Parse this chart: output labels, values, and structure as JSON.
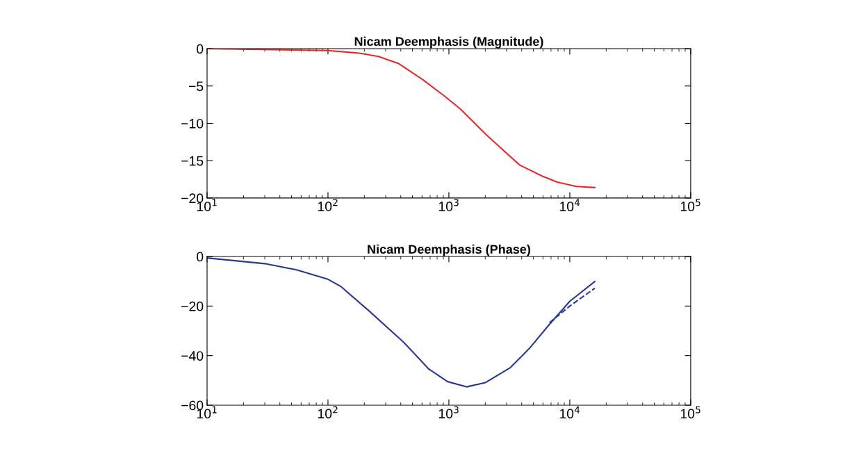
{
  "chart_data": [
    {
      "type": "line",
      "title": "Nicam Deemphasis (Magnitude)",
      "log": "x",
      "grid": false,
      "marker": "none",
      "xlim": [
        10,
        100000
      ],
      "xticks": [
        {
          "value": 10,
          "label": "10$^{1}$"
        },
        {
          "value": 100,
          "label": "10$^{2}$"
        },
        {
          "value": 1000,
          "label": "10$^{3}$"
        },
        {
          "value": 10000,
          "label": "10$^{4}$"
        },
        {
          "value": 100000,
          "label": "10$^{5}$"
        }
      ],
      "ylim": [
        -20,
        0
      ],
      "yticks": [
        -20,
        -15,
        -10,
        -5,
        0
      ],
      "series": [
        {
          "color": "#e8262b",
          "line_style": "solid",
          "x": [
            10,
            100,
            182,
            261,
            385,
            603,
            912,
            1230,
            2000,
            2865,
            3865,
            5890,
            7940,
            11380,
            16100
          ],
          "values": [
            0,
            -0.25,
            -0.6,
            -1.05,
            -2.0,
            -4.1,
            -6.3,
            -8.0,
            -11.4,
            -13.7,
            -15.6,
            -17.05,
            -17.9,
            -18.45,
            -18.6
          ]
        }
      ]
    },
    {
      "type": "line",
      "title": "Nicam Deemphasis (Phase)",
      "log": "x",
      "grid": false,
      "marker": "none",
      "xlim": [
        10,
        100000
      ],
      "xticks": [
        {
          "value": 10,
          "label": "10$^{1}$"
        },
        {
          "value": 100,
          "label": "10$^{2}$"
        },
        {
          "value": 1000,
          "label": "10$^{3}$"
        },
        {
          "value": 10000,
          "label": "10$^{4}$"
        },
        {
          "value": 100000,
          "label": "10$^{5}$"
        }
      ],
      "ylim": [
        -60,
        0
      ],
      "yticks": [
        -60,
        -40,
        -20,
        0
      ],
      "series": [
        {
          "color": "#2b3593",
          "line_style": "solid",
          "x": [
            10,
            30,
            55,
            100,
            127,
            218,
            423,
            682,
            977,
            1400,
            2000,
            3230,
            4630,
            6650,
            10000,
            16100
          ],
          "values": [
            -0.6,
            -2.9,
            -5.4,
            -9.2,
            -12.0,
            -21.9,
            -34.6,
            -45.4,
            -50.5,
            -52.6,
            -50.9,
            -44.8,
            -37.1,
            -27.9,
            -18.1,
            -10.1
          ]
        },
        {
          "color": "#2b3593",
          "line_style": "dashed",
          "x": [
            6800,
            10000,
            16100
          ],
          "values": [
            -26.7,
            -20.0,
            -12.8
          ]
        }
      ]
    }
  ]
}
